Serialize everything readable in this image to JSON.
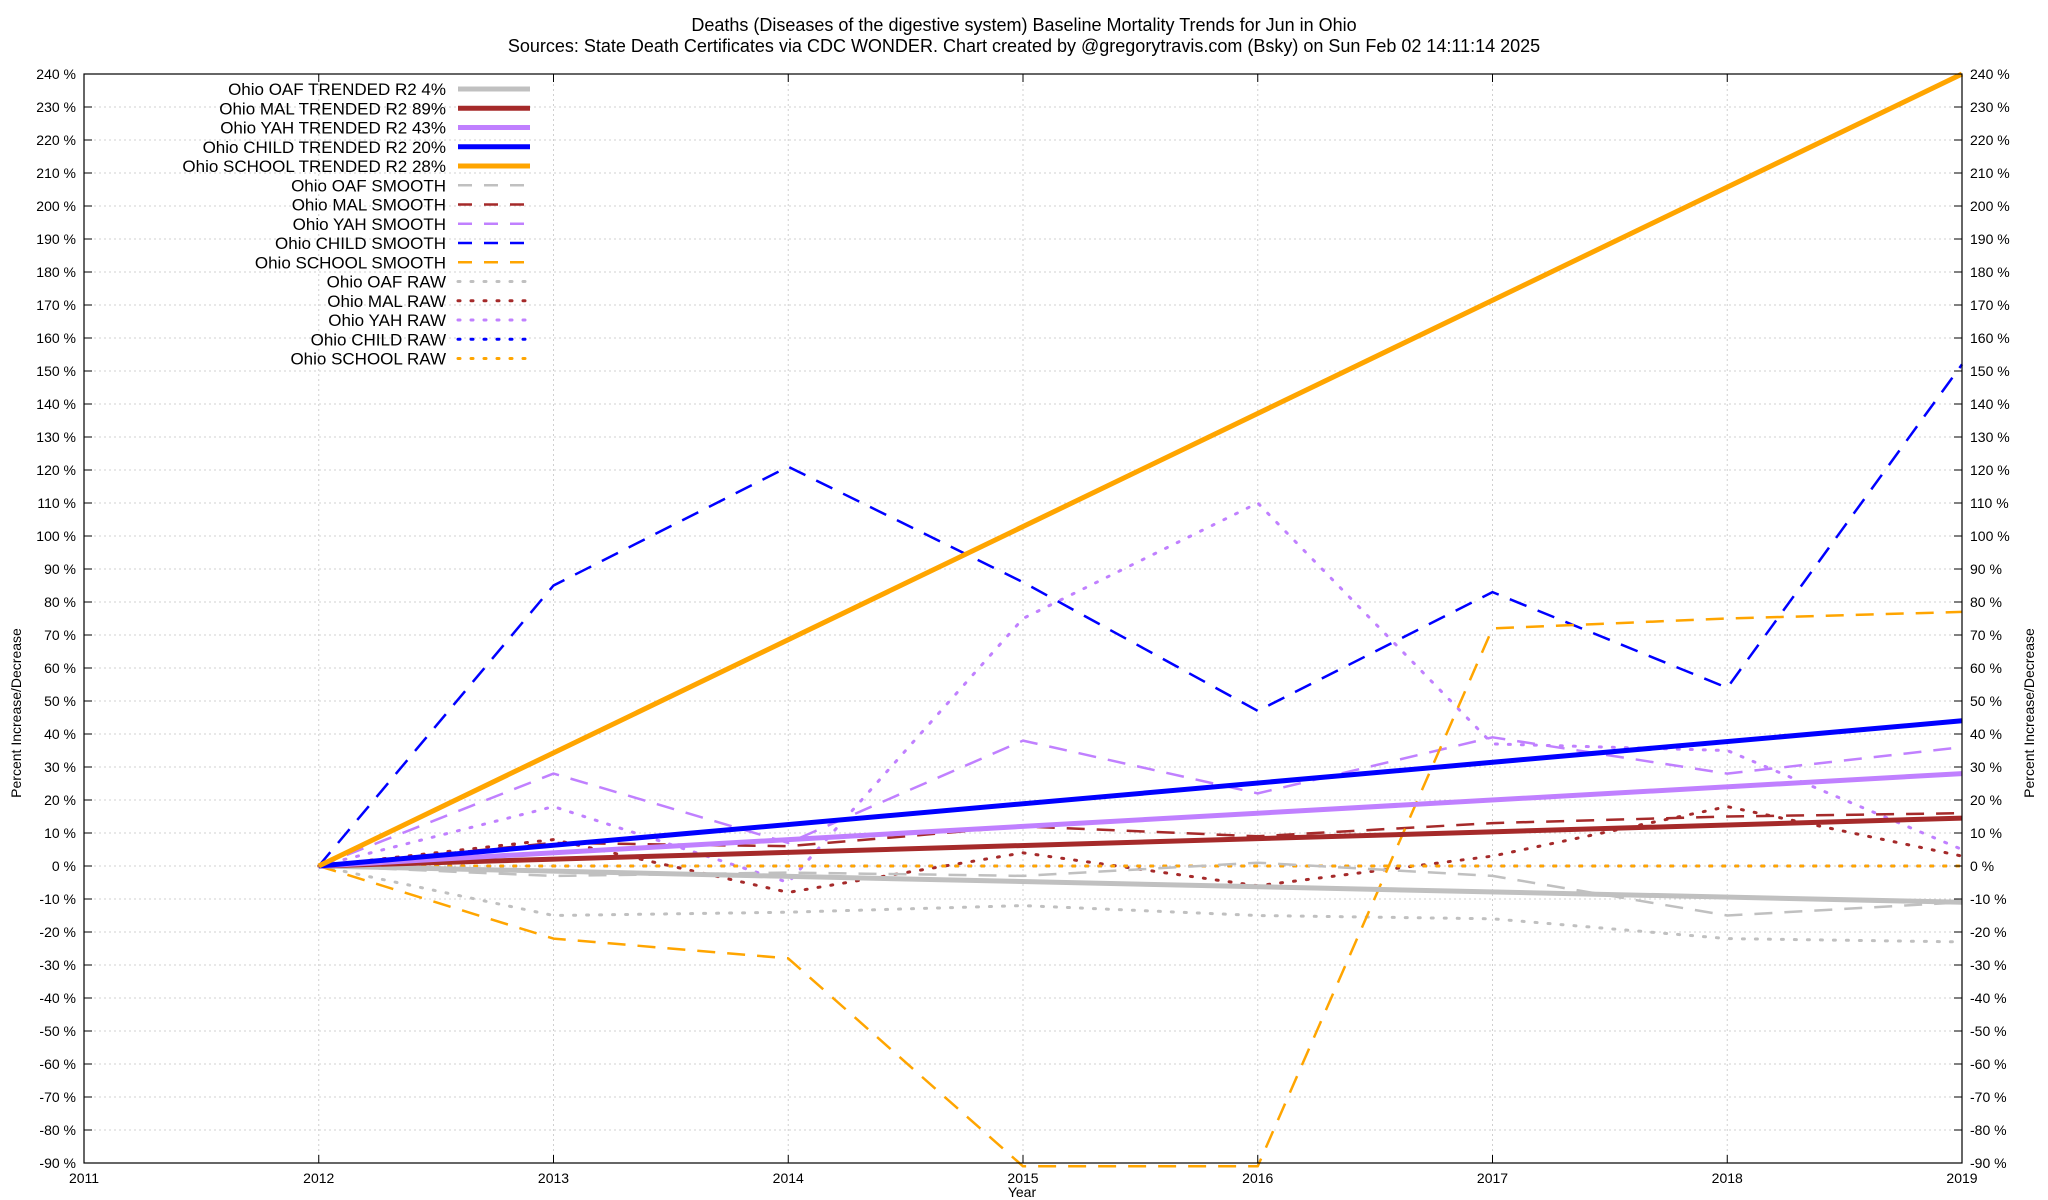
{
  "chart_data": {
    "type": "line",
    "title": "Deaths (Diseases of the digestive system)  Baseline Mortality Trends for Jun in Ohio",
    "subtitle": "Sources: State Death Certificates via CDC WONDER.              Chart created by @gregorytravis.com (Bsky) on Sun Feb 02 14:11:14 2025",
    "xlabel": "Year",
    "ylabel": "Percent Increase/Decrease",
    "y2label": "Percent Increase/Decrease",
    "xlim": [
      2011,
      2019
    ],
    "ylim": [
      -90,
      240
    ],
    "x_ticks": [
      2011,
      2012,
      2013,
      2014,
      2015,
      2016,
      2017,
      2018,
      2019
    ],
    "y_ticks": [
      240,
      230,
      220,
      210,
      200,
      190,
      180,
      170,
      160,
      150,
      140,
      130,
      120,
      110,
      100,
      90,
      80,
      70,
      60,
      50,
      40,
      30,
      20,
      10,
      0,
      -10,
      -20,
      -30,
      -40,
      -50,
      -60,
      -70,
      -80,
      -90
    ],
    "y_tick_suffix": " %",
    "grid": true,
    "legend_position": "top-left",
    "series": [
      {
        "name": "Ohio OAF TRENDED R2  4%",
        "style": "trend",
        "color": "#c0c0c0",
        "x": [
          2012,
          2019
        ],
        "y": [
          0,
          -11
        ]
      },
      {
        "name": "Ohio MAL TRENDED R2  89%",
        "style": "trend",
        "color": "#a52a2a",
        "x": [
          2012,
          2019
        ],
        "y": [
          0,
          14.5
        ]
      },
      {
        "name": "Ohio YAH TRENDED R2  43%",
        "style": "trend",
        "color": "#c080ff",
        "x": [
          2012,
          2019
        ],
        "y": [
          0,
          28
        ]
      },
      {
        "name": "Ohio CHILD TRENDED R2  20%",
        "style": "trend",
        "color": "#0000ff",
        "x": [
          2012,
          2019
        ],
        "y": [
          0,
          44
        ]
      },
      {
        "name": "Ohio SCHOOL TRENDED R2  28%",
        "style": "trend",
        "color": "#ffa500",
        "x": [
          2012,
          2019
        ],
        "y": [
          0,
          240
        ]
      },
      {
        "name": "Ohio OAF SMOOTH",
        "style": "smooth",
        "color": "#c0c0c0",
        "x": [
          2012,
          2013,
          2014,
          2015,
          2016,
          2017,
          2018,
          2019
        ],
        "y": [
          0,
          -3,
          -2,
          -3,
          1,
          -3,
          -15,
          -11
        ]
      },
      {
        "name": "Ohio MAL SMOOTH",
        "style": "smooth",
        "color": "#a52a2a",
        "x": [
          2012,
          2013,
          2014,
          2015,
          2016,
          2017,
          2018,
          2019
        ],
        "y": [
          0,
          7,
          6,
          12,
          9,
          13,
          15,
          16
        ]
      },
      {
        "name": "Ohio YAH SMOOTH",
        "style": "smooth",
        "color": "#c080ff",
        "x": [
          2012,
          2013,
          2014,
          2015,
          2016,
          2017,
          2018,
          2019
        ],
        "y": [
          0,
          28,
          7,
          38,
          22,
          39,
          28,
          36
        ]
      },
      {
        "name": "Ohio CHILD SMOOTH",
        "style": "smooth",
        "color": "#0000ff",
        "x": [
          2012,
          2013,
          2014,
          2015,
          2016,
          2017,
          2018,
          2019
        ],
        "y": [
          0,
          85,
          121,
          86,
          47,
          83,
          54,
          152
        ]
      },
      {
        "name": "Ohio SCHOOL SMOOTH",
        "style": "smooth",
        "color": "#ffa500",
        "x": [
          2012,
          2013,
          2014,
          2015,
          2016,
          2017,
          2018,
          2019
        ],
        "y": [
          0,
          -22,
          -28,
          -91,
          -91,
          72,
          75,
          77
        ]
      },
      {
        "name": "Ohio OAF RAW",
        "style": "raw",
        "color": "#c0c0c0",
        "x": [
          2012,
          2013,
          2014,
          2015,
          2016,
          2017,
          2018,
          2019
        ],
        "y": [
          0,
          -15,
          -14,
          -12,
          -15,
          -16,
          -22,
          -23
        ]
      },
      {
        "name": "Ohio MAL RAW",
        "style": "raw",
        "color": "#a52a2a",
        "x": [
          2012,
          2013,
          2014,
          2015,
          2016,
          2017,
          2018,
          2019
        ],
        "y": [
          0,
          8,
          -8,
          4,
          -6,
          3,
          18,
          3
        ]
      },
      {
        "name": "Ohio YAH RAW",
        "style": "raw",
        "color": "#c080ff",
        "x": [
          2012,
          2013,
          2014,
          2015,
          2016,
          2017,
          2018,
          2019
        ],
        "y": [
          0,
          18,
          -5,
          75,
          110,
          37,
          35,
          5
        ]
      },
      {
        "name": "Ohio CHILD RAW",
        "style": "raw",
        "color": "#0000ff",
        "x": [
          2012,
          2013,
          2014,
          2015,
          2016,
          2017,
          2018,
          2019
        ],
        "y": [
          0,
          0,
          0,
          0,
          0,
          0,
          0,
          0
        ]
      },
      {
        "name": "Ohio SCHOOL RAW",
        "style": "raw",
        "color": "#ffa500",
        "x": [
          2012,
          2013,
          2014,
          2015,
          2016,
          2017,
          2018,
          2019
        ],
        "y": [
          0,
          0,
          0,
          0,
          0,
          0,
          0,
          0
        ]
      }
    ]
  }
}
